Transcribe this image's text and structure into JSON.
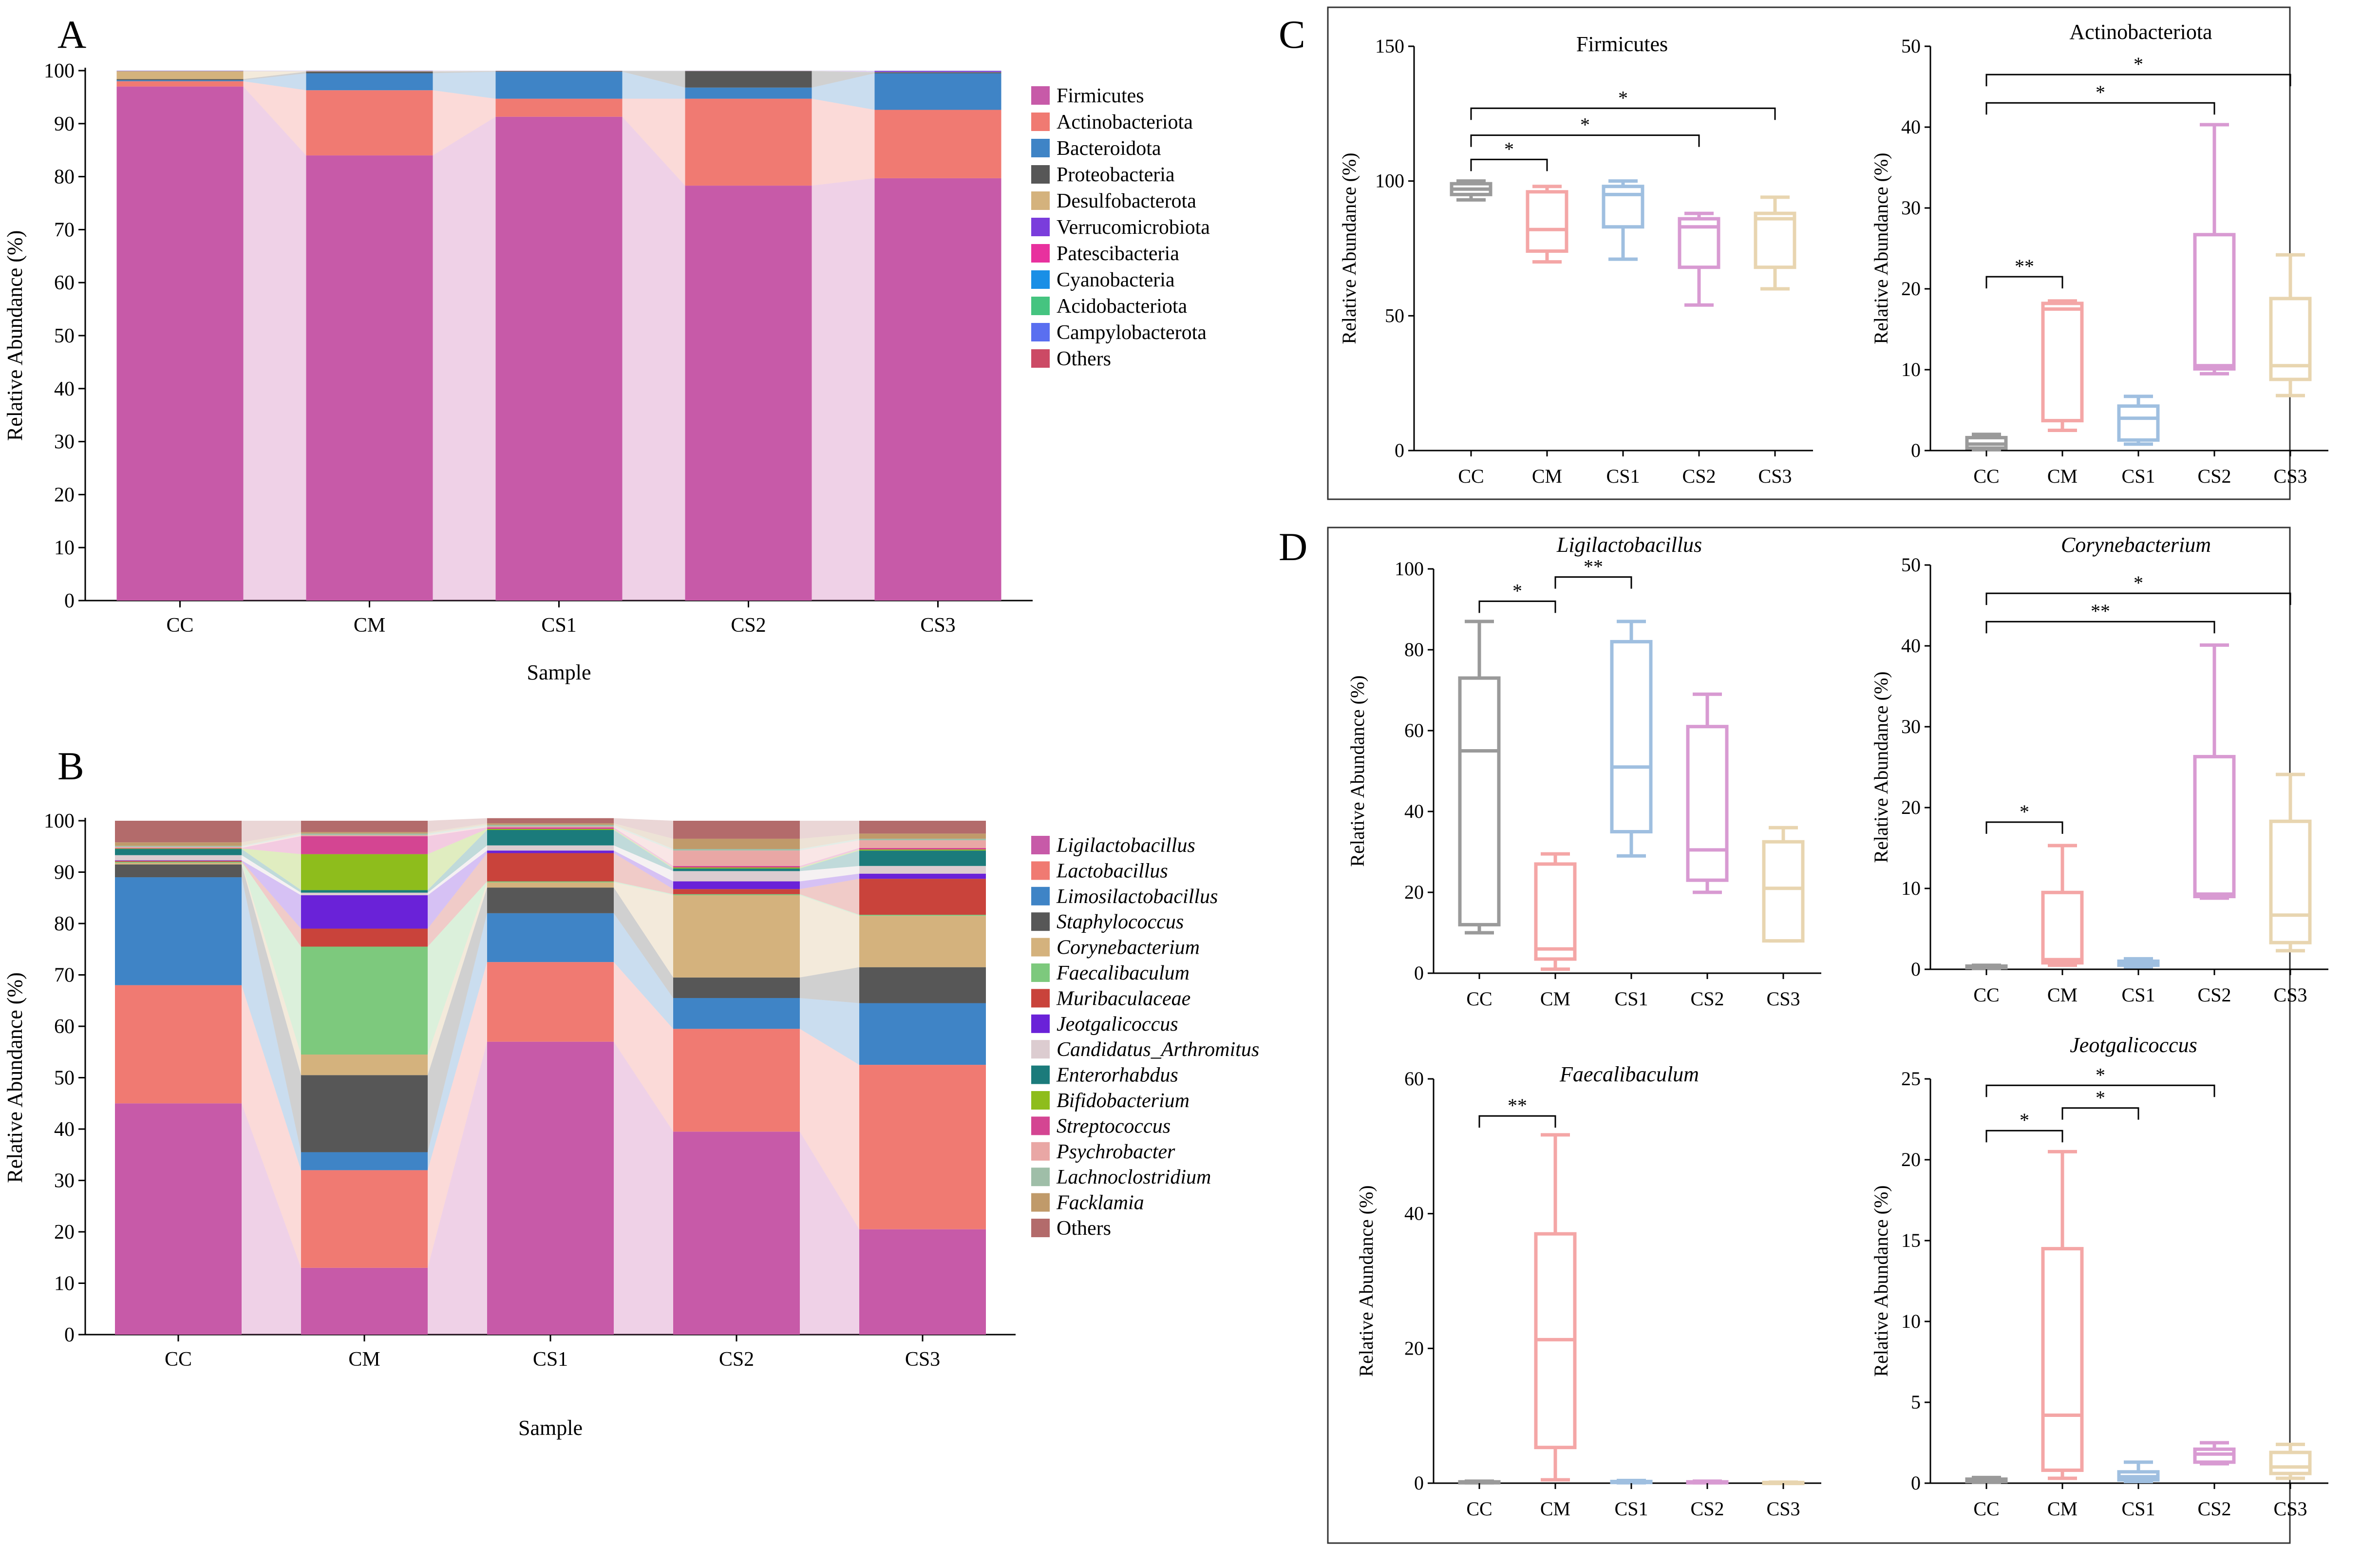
{
  "chart_data": [
    {
      "panel": "A",
      "type": "stacked-bar",
      "xlabel": "Sample",
      "ylabel": "Relative Abundance (%)",
      "ylim": [
        0,
        100
      ],
      "yticks": [
        0,
        10,
        20,
        30,
        40,
        50,
        60,
        70,
        80,
        90,
        100
      ],
      "categories": [
        "CC",
        "CM",
        "CS1",
        "CS2",
        "CS3"
      ],
      "series": [
        {
          "name": "Firmicutes",
          "color": "#c75aa8",
          "values": [
            97.0,
            84.0,
            91.3,
            78.3,
            79.7
          ]
        },
        {
          "name": "Actinobacteriota",
          "color": "#f07a72",
          "values": [
            1.0,
            12.3,
            3.4,
            16.4,
            12.9
          ]
        },
        {
          "name": "Bacteroidota",
          "color": "#3f84c6",
          "values": [
            0.2,
            3.2,
            5.1,
            2.1,
            6.9
          ]
        },
        {
          "name": "Proteobacteria",
          "color": "#575757",
          "values": [
            0.2,
            0.3,
            0.1,
            3.1,
            0.2
          ]
        },
        {
          "name": "Desulfobacterota",
          "color": "#d4b27d",
          "values": [
            1.5,
            0.1,
            0.04,
            0.04,
            0.04
          ]
        },
        {
          "name": "Verrucomicrobiota",
          "color": "#7a3ddc",
          "values": [
            0.04,
            0.04,
            0.02,
            0.02,
            0.2
          ]
        },
        {
          "name": "Patescibacteria",
          "color": "#e8319e",
          "values": [
            0.02,
            0.02,
            0.02,
            0.02,
            0.02
          ]
        },
        {
          "name": "Cyanobacteria",
          "color": "#1a8fe6",
          "values": [
            0.02,
            0.02,
            0.01,
            0.01,
            0.02
          ]
        },
        {
          "name": "Acidobacteriota",
          "color": "#45c480",
          "values": [
            0.01,
            0.01,
            0.01,
            0.01,
            0.01
          ]
        },
        {
          "name": "Campylobacterota",
          "color": "#5a6ff0",
          "values": [
            0.01,
            0.01,
            0.0,
            0.0,
            0.01
          ]
        },
        {
          "name": "Others",
          "color": "#cc4a65",
          "values": [
            0.0,
            0.0,
            0.0,
            0.0,
            0.0
          ]
        }
      ]
    },
    {
      "panel": "B",
      "type": "stacked-bar",
      "xlabel": "Sample",
      "ylabel": "Relative Abundance (%)",
      "ylim": [
        0,
        100
      ],
      "yticks": [
        0,
        10,
        20,
        30,
        40,
        50,
        60,
        70,
        80,
        90,
        100
      ],
      "categories": [
        "CC",
        "CM",
        "CS1",
        "CS2",
        "CS3"
      ],
      "series": [
        {
          "name": "Ligilactobacillus",
          "color": "#c75aa8",
          "values": [
            45.0,
            13.0,
            57.0,
            39.5,
            20.5
          ]
        },
        {
          "name": "Lactobacillus",
          "color": "#f07a72",
          "values": [
            23.0,
            19.0,
            15.5,
            20.0,
            32.0
          ]
        },
        {
          "name": "Limosilactobacillus",
          "color": "#3f84c6",
          "values": [
            21.0,
            3.5,
            9.5,
            6.0,
            12.0
          ]
        },
        {
          "name": "Staphylococcus",
          "color": "#575757",
          "values": [
            2.5,
            15.0,
            5.0,
            4.0,
            7.0
          ]
        },
        {
          "name": "Corynebacterium",
          "color": "#d4b27d",
          "values": [
            0.3,
            4.0,
            1.0,
            16.0,
            10.0
          ]
        },
        {
          "name": "Faecalibaculum",
          "color": "#7dc97d",
          "values": [
            0.2,
            21.0,
            0.2,
            0.2,
            0.2
          ]
        },
        {
          "name": "Muribaculaceae",
          "color": "#c9433b",
          "values": [
            0.2,
            3.5,
            5.5,
            1.0,
            7.0
          ]
        },
        {
          "name": "Jeotgalicoccus",
          "color": "#6a22d8",
          "values": [
            0.1,
            6.5,
            0.5,
            1.5,
            1.0
          ]
        },
        {
          "name": "Candidatus_Arthromitus",
          "color": "#dcccd0",
          "values": [
            1.0,
            0.5,
            1.0,
            2.0,
            1.5
          ]
        },
        {
          "name": "Enterorhabdus",
          "color": "#1b7b7b",
          "values": [
            1.2,
            0.5,
            3.0,
            0.5,
            3.0
          ]
        },
        {
          "name": "Bifidobacterium",
          "color": "#8ebd1c",
          "values": [
            0.1,
            7.0,
            0.2,
            0.2,
            0.2
          ]
        },
        {
          "name": "Streptococcus",
          "color": "#d44592",
          "values": [
            0.1,
            3.5,
            0.3,
            0.3,
            0.3
          ]
        },
        {
          "name": "Psychrobacter",
          "color": "#e9a7a5",
          "values": [
            0.2,
            0.2,
            0.2,
            3.0,
            1.5
          ]
        },
        {
          "name": "Lachnoclostridium",
          "color": "#9fbea8",
          "values": [
            0.2,
            0.3,
            0.3,
            0.3,
            0.3
          ]
        },
        {
          "name": "Facklamia",
          "color": "#c09a6a",
          "values": [
            0.7,
            0.3,
            0.3,
            2.0,
            1.0
          ]
        },
        {
          "name": "Others",
          "color": "#b36b6b",
          "values": [
            4.2,
            2.2,
            1.0,
            3.5,
            2.5
          ]
        }
      ]
    },
    {
      "panel": "C",
      "type": "boxplot",
      "title": "Firmicutes",
      "title_italic": false,
      "ylabel": "Relative Abundance (%)",
      "ylim": [
        0,
        150
      ],
      "yticks": [
        0,
        50,
        100,
        150
      ],
      "categories": [
        "CC",
        "CM",
        "CS1",
        "CS2",
        "CS3"
      ],
      "colors": [
        "#9a9a9a",
        "#f4a6a6",
        "#9fbfe0",
        "#d89ad2",
        "#e8d5b0"
      ],
      "boxes": [
        {
          "min": 93,
          "q1": 95,
          "median": 97,
          "q3": 99,
          "max": 100
        },
        {
          "min": 70,
          "q1": 74,
          "median": 82,
          "q3": 96,
          "max": 98
        },
        {
          "min": 71,
          "q1": 83,
          "median": 95,
          "q3": 98,
          "max": 100
        },
        {
          "min": 54,
          "q1": 68,
          "median": 83,
          "q3": 86,
          "max": 88
        },
        {
          "min": 60,
          "q1": 68,
          "median": 86,
          "q3": 88,
          "max": 94
        }
      ],
      "significance": [
        {
          "from": "CC",
          "to": "CM",
          "label": "*",
          "y": 108
        },
        {
          "from": "CC",
          "to": "CS2",
          "label": "*",
          "y": 117
        },
        {
          "from": "CC",
          "to": "CS3",
          "label": "*",
          "y": 127
        }
      ]
    },
    {
      "panel": "C",
      "type": "boxplot",
      "title": "Actinobacteriota",
      "title_italic": false,
      "ylabel": "Relative Abundance (%)",
      "ylim": [
        0,
        50
      ],
      "yticks": [
        0,
        10,
        20,
        30,
        40,
        50
      ],
      "categories": [
        "CC",
        "CM",
        "CS1",
        "CS2",
        "CS3"
      ],
      "colors": [
        "#9a9a9a",
        "#f4a6a6",
        "#9fbfe0",
        "#d89ad2",
        "#e8d5b0"
      ],
      "boxes": [
        {
          "min": 0.1,
          "q1": 0.3,
          "median": 0.8,
          "q3": 1.6,
          "max": 2.0
        },
        {
          "min": 2.5,
          "q1": 3.7,
          "median": 17.5,
          "q3": 18.2,
          "max": 18.5
        },
        {
          "min": 0.8,
          "q1": 1.3,
          "median": 4.0,
          "q3": 5.5,
          "max": 6.7
        },
        {
          "min": 9.5,
          "q1": 10.1,
          "median": 10.5,
          "q3": 26.7,
          "max": 40.3
        },
        {
          "min": 6.8,
          "q1": 8.8,
          "median": 10.5,
          "q3": 18.8,
          "max": 24.2
        }
      ],
      "significance": [
        {
          "from": "CC",
          "to": "CM",
          "label": "**",
          "y": 21.5
        },
        {
          "from": "CC",
          "to": "CS2",
          "label": "*",
          "y": 43.0
        },
        {
          "from": "CC",
          "to": "CS3",
          "label": "*",
          "y": 46.5
        }
      ]
    },
    {
      "panel": "D",
      "type": "boxplot",
      "title": "Ligilactobacillus",
      "title_italic": true,
      "ylabel": "Relative Abundance (%)",
      "ylim": [
        0,
        100
      ],
      "yticks": [
        0,
        20,
        40,
        60,
        80,
        100
      ],
      "categories": [
        "CC",
        "CM",
        "CS1",
        "CS2",
        "CS3"
      ],
      "colors": [
        "#9a9a9a",
        "#f4a6a6",
        "#9fbfe0",
        "#d89ad2",
        "#e8d5b0"
      ],
      "boxes": [
        {
          "min": 10,
          "q1": 12,
          "median": 55,
          "q3": 73,
          "max": 87
        },
        {
          "min": 1,
          "q1": 3.5,
          "median": 6,
          "q3": 27,
          "max": 29.5
        },
        {
          "min": 29,
          "q1": 35,
          "median": 51,
          "q3": 82,
          "max": 87
        },
        {
          "min": 20,
          "q1": 23,
          "median": 30.5,
          "q3": 61,
          "max": 69
        },
        {
          "min": 8,
          "q1": 8,
          "median": 21,
          "q3": 32.5,
          "max": 36
        }
      ],
      "significance": [
        {
          "from": "CC",
          "to": "CM",
          "label": "*",
          "y": 92
        },
        {
          "from": "CM",
          "to": "CS1",
          "label": "**",
          "y": 98
        }
      ]
    },
    {
      "panel": "D",
      "type": "boxplot",
      "title": "Corynebacterium",
      "title_italic": true,
      "ylabel": "Relative Abundance (%)",
      "ylim": [
        0,
        50
      ],
      "yticks": [
        0,
        10,
        20,
        30,
        40,
        50
      ],
      "categories": [
        "CC",
        "CM",
        "CS1",
        "CS2",
        "CS3"
      ],
      "colors": [
        "#9a9a9a",
        "#f4a6a6",
        "#9fbfe0",
        "#d89ad2",
        "#e8d5b0"
      ],
      "boxes": [
        {
          "min": 0.1,
          "q1": 0.2,
          "median": 0.3,
          "q3": 0.4,
          "max": 0.5
        },
        {
          "min": 0.5,
          "q1": 0.8,
          "median": 1.2,
          "q3": 9.5,
          "max": 15.3
        },
        {
          "min": 0.3,
          "q1": 0.5,
          "median": 0.8,
          "q3": 1.0,
          "max": 1.3
        },
        {
          "min": 8.8,
          "q1": 9.0,
          "median": 9.3,
          "q3": 26.3,
          "max": 40.1
        },
        {
          "min": 2.3,
          "q1": 3.3,
          "median": 6.7,
          "q3": 18.3,
          "max": 24.1
        }
      ],
      "significance": [
        {
          "from": "CC",
          "to": "CM",
          "label": "*",
          "y": 18.2
        },
        {
          "from": "CC",
          "to": "CS2",
          "label": "**",
          "y": 43.0
        },
        {
          "from": "CC",
          "to": "CS3",
          "label": "*",
          "y": 46.5
        }
      ]
    },
    {
      "panel": "D",
      "type": "boxplot",
      "title": "Faecalibaculum",
      "title_italic": true,
      "ylabel": "Relative Abundance (%)",
      "ylim": [
        0,
        60
      ],
      "yticks": [
        0,
        20,
        40,
        60
      ],
      "categories": [
        "CC",
        "CM",
        "CS1",
        "CS2",
        "CS3"
      ],
      "colors": [
        "#9a9a9a",
        "#f4a6a6",
        "#9fbfe0",
        "#d89ad2",
        "#e8d5b0"
      ],
      "boxes": [
        {
          "min": 0.05,
          "q1": 0.1,
          "median": 0.15,
          "q3": 0.2,
          "max": 0.3
        },
        {
          "min": 0.5,
          "q1": 5.3,
          "median": 21.3,
          "q3": 37.0,
          "max": 51.7
        },
        {
          "min": 0.05,
          "q1": 0.1,
          "median": 0.15,
          "q3": 0.25,
          "max": 0.4
        },
        {
          "min": 0.05,
          "q1": 0.1,
          "median": 0.15,
          "q3": 0.2,
          "max": 0.3
        },
        {
          "min": 0.02,
          "q1": 0.05,
          "median": 0.08,
          "q3": 0.1,
          "max": 0.15
        }
      ],
      "significance": [
        {
          "from": "CC",
          "to": "CM",
          "label": "**",
          "y": 54.5
        }
      ]
    },
    {
      "panel": "D",
      "type": "boxplot",
      "title": "Jeotgalicoccus",
      "title_italic": true,
      "ylabel": "Relative Abundance (%)",
      "ylim": [
        0,
        25
      ],
      "yticks": [
        0,
        5,
        10,
        15,
        20,
        25
      ],
      "categories": [
        "CC",
        "CM",
        "CS1",
        "CS2",
        "CS3"
      ],
      "colors": [
        "#9a9a9a",
        "#f4a6a6",
        "#9fbfe0",
        "#d89ad2",
        "#e8d5b0"
      ],
      "boxes": [
        {
          "min": 0.05,
          "q1": 0.1,
          "median": 0.15,
          "q3": 0.25,
          "max": 0.35
        },
        {
          "min": 0.3,
          "q1": 0.8,
          "median": 4.2,
          "q3": 14.5,
          "max": 20.5
        },
        {
          "min": 0.1,
          "q1": 0.2,
          "median": 0.4,
          "q3": 0.7,
          "max": 1.3
        },
        {
          "min": 1.2,
          "q1": 1.3,
          "median": 1.8,
          "q3": 2.1,
          "max": 2.5
        },
        {
          "min": 0.3,
          "q1": 0.6,
          "median": 1.0,
          "q3": 1.9,
          "max": 2.4
        }
      ],
      "significance": [
        {
          "from": "CC",
          "to": "CM",
          "label": "*",
          "y": 21.8
        },
        {
          "from": "CM",
          "to": "CS1",
          "label": "*",
          "y": 23.2
        },
        {
          "from": "CC",
          "to": "CS2",
          "label": "*",
          "y": 24.6
        }
      ]
    }
  ],
  "panels": {
    "a": "A",
    "b": "B",
    "c": "C",
    "d": "D"
  }
}
